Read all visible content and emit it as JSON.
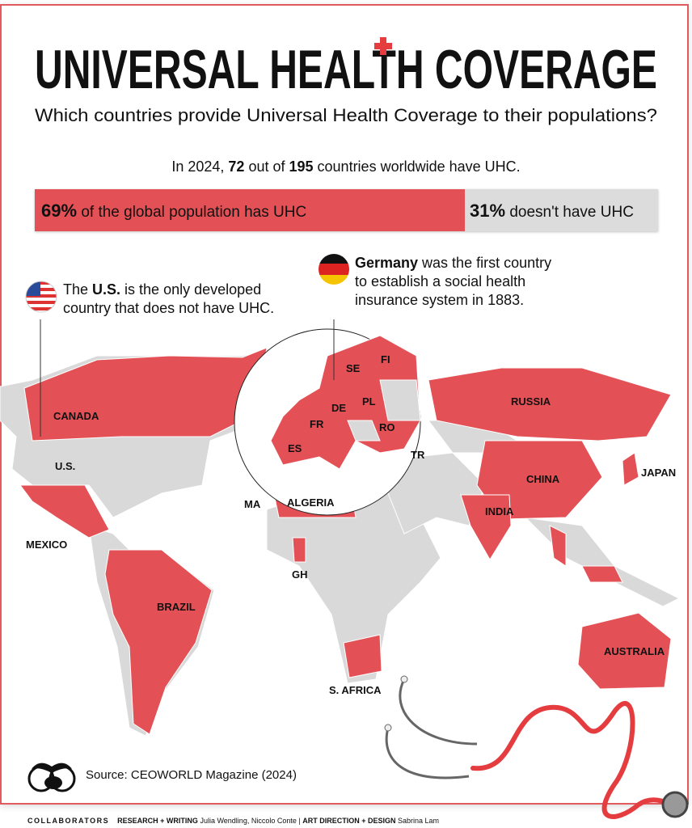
{
  "header": {
    "title": "UNIVERSAL HEALTH COVERAGE",
    "subtitle": "Which countries provide Universal Health Coverage to their populations?"
  },
  "stat": {
    "prefix": "In 2024, ",
    "count": "72",
    "mid": " out of ",
    "total": "195",
    "suffix": " countries worldwide have UHC."
  },
  "coverage": {
    "has_percent": 69,
    "has_value": "69%",
    "has_label": " of the global population has UHC",
    "not_value": "31%",
    "not_label": " doesn't have UHC"
  },
  "notes": {
    "us": {
      "pre": "The ",
      "bold": "U.S.",
      "post": " is the only developed",
      "line2": "country that does not have UHC."
    },
    "germany": {
      "bold": "Germany",
      "post": " was the first country",
      "line2": "to establish a social health",
      "line3": "insurance system in 1883."
    }
  },
  "map_labels": {
    "canada": "CANADA",
    "us": "U.S.",
    "mexico": "MEXICO",
    "brazil": "BRAZIL",
    "ma": "MA",
    "algeria": "ALGERIA",
    "gh": "GH",
    "s_africa": "S. AFRICA",
    "russia": "RUSSIA",
    "china": "CHINA",
    "india": "INDIA",
    "japan": "JAPAN",
    "australia": "AUSTRALIA",
    "fi": "FI",
    "se": "SE",
    "de": "DE",
    "pl": "PL",
    "fr": "FR",
    "ro": "RO",
    "es": "ES",
    "tr": "TR"
  },
  "colors": {
    "uhc": "#e35055",
    "no_uhc": "#d9d9d9",
    "border": "#e05a5e"
  },
  "footer": {
    "source": "Source: CEOWORLD Magazine (2024)",
    "collaborators": "COLLABORATORS",
    "research_label": "RESEARCH + WRITING",
    "research": "Julia Wendling, Niccolo Conte",
    "sep": " | ",
    "design_label": "ART DIRECTION + DESIGN",
    "design": "Sabrina Lam"
  }
}
